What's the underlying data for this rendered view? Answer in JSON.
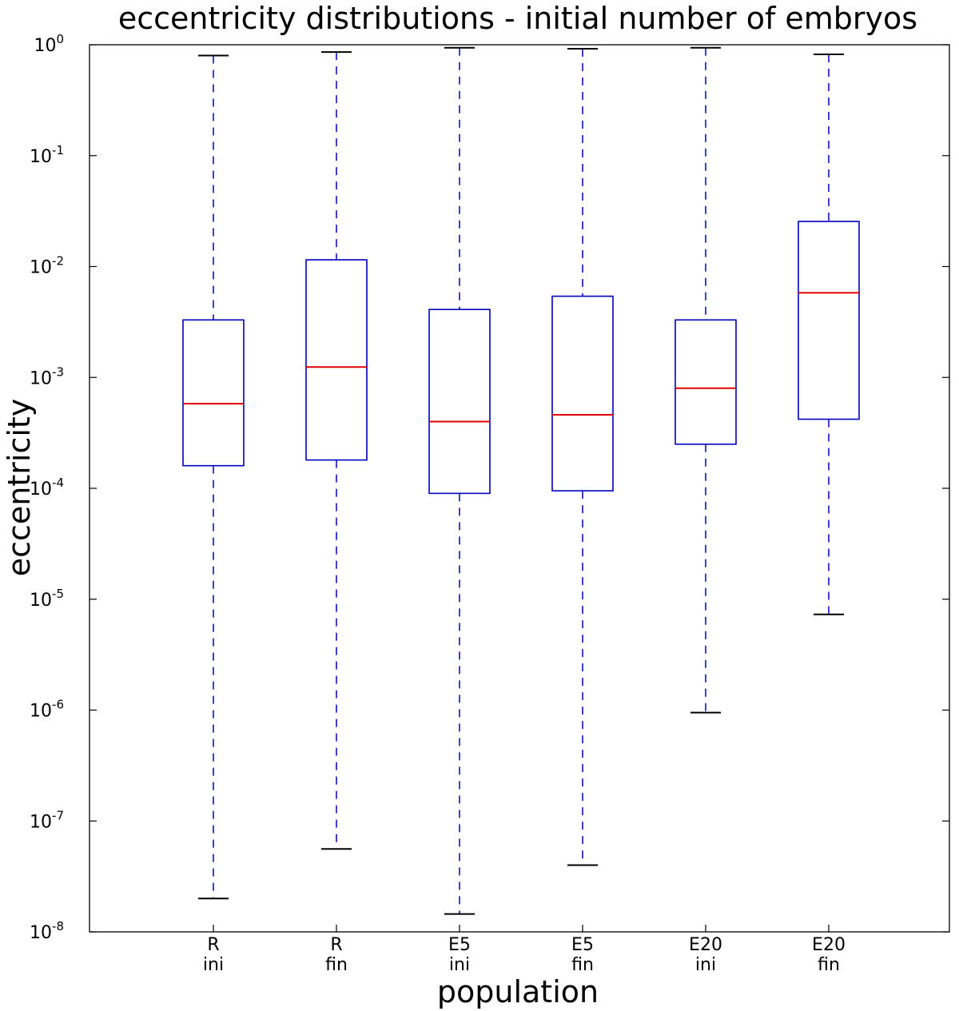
{
  "chart_data": {
    "type": "box",
    "title": "eccentricity distributions - initial number of embryos",
    "xlabel": "population",
    "ylabel": "eccentricity",
    "yscale": "log",
    "ylim": [
      1e-08,
      1
    ],
    "yticks": [
      {
        "value": 1,
        "base": "10",
        "exp": "0"
      },
      {
        "value": 0.1,
        "base": "10",
        "exp": "-1"
      },
      {
        "value": 0.01,
        "base": "10",
        "exp": "-2"
      },
      {
        "value": 0.001,
        "base": "10",
        "exp": "-3"
      },
      {
        "value": 0.0001,
        "base": "10",
        "exp": "-4"
      },
      {
        "value": 1e-05,
        "base": "10",
        "exp": "-5"
      },
      {
        "value": 1e-06,
        "base": "10",
        "exp": "-6"
      },
      {
        "value": 1e-07,
        "base": "10",
        "exp": "-7"
      },
      {
        "value": 1e-08,
        "base": "10",
        "exp": "-8"
      }
    ],
    "grid": false,
    "colors": {
      "box": "#0000c0",
      "median": "#e00000",
      "whisker": "#0000c0",
      "cap": "#000000",
      "axis": "#000000"
    },
    "boxes": [
      {
        "label_line1": "R",
        "label_line2": "ini",
        "whislo": 2e-08,
        "q1": 0.00016,
        "median": 0.00058,
        "q3": 0.0033,
        "whishi": 0.8
      },
      {
        "label_line1": "R",
        "label_line2": "fin",
        "whislo": 5.6e-08,
        "q1": 0.00018,
        "median": 0.00124,
        "q3": 0.0115,
        "whishi": 0.86
      },
      {
        "label_line1": "E5",
        "label_line2": "ini",
        "whislo": 1.45e-08,
        "q1": 9e-05,
        "median": 0.0004,
        "q3": 0.0041,
        "whishi": 0.94
      },
      {
        "label_line1": "E5",
        "label_line2": "fin",
        "whislo": 4e-08,
        "q1": 9.5e-05,
        "median": 0.00046,
        "q3": 0.0054,
        "whishi": 0.92
      },
      {
        "label_line1": "E20",
        "label_line2": "ini",
        "whislo": 9.5e-07,
        "q1": 0.00025,
        "median": 0.0008,
        "q3": 0.0033,
        "whishi": 0.94
      },
      {
        "label_line1": "E20",
        "label_line2": "fin",
        "whislo": 7.3e-06,
        "q1": 0.00042,
        "median": 0.0058,
        "q3": 0.0255,
        "whishi": 0.82
      }
    ]
  }
}
